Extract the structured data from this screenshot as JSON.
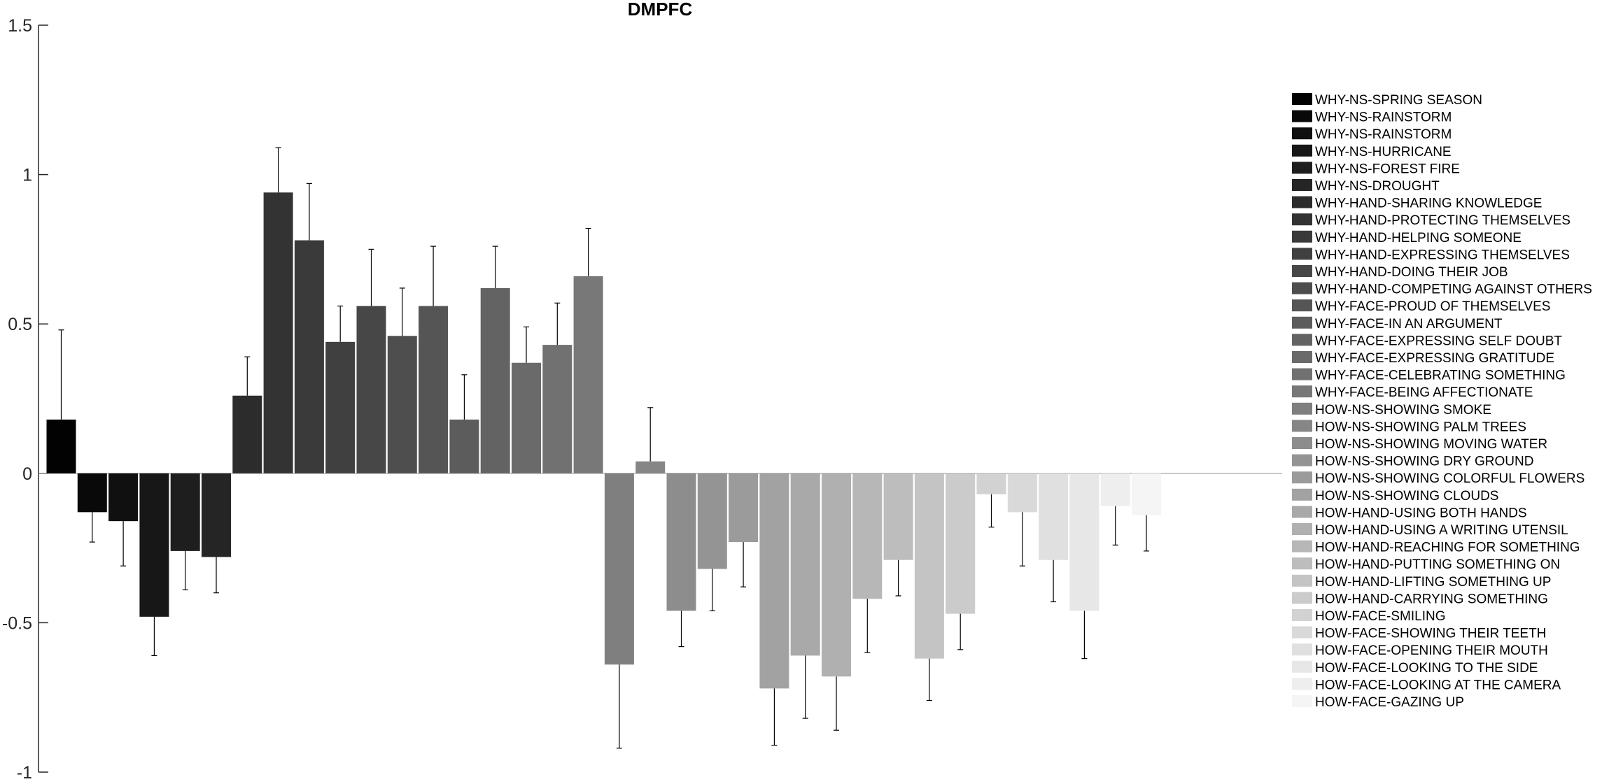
{
  "chart_data": {
    "type": "bar",
    "title": "DMPFC",
    "xlabel": "",
    "ylabel": "",
    "ylim": [
      -1,
      1.5
    ],
    "yticks": [
      1.5,
      1,
      0.5,
      0,
      -0.5,
      -1
    ],
    "ytick_labels": [
      "1.5",
      "1",
      "0.5",
      "0",
      "-0.5",
      "-1"
    ],
    "grid": false,
    "legend_position": "right",
    "has_error_bars": true,
    "colormap": "grayscale, black to near-white",
    "series": [
      {
        "name": "WHY-NS-SPRING SEASON",
        "value": 0.18,
        "error": 0.3
      },
      {
        "name": "WHY-NS-RAINSTORM",
        "value": -0.13,
        "error": 0.1
      },
      {
        "name": "WHY-NS-RAINSTORM",
        "value": -0.16,
        "error": 0.15
      },
      {
        "name": "WHY-NS-HURRICANE",
        "value": -0.48,
        "error": 0.13
      },
      {
        "name": "WHY-NS-FOREST FIRE",
        "value": -0.26,
        "error": 0.13
      },
      {
        "name": "WHY-NS-DROUGHT",
        "value": -0.28,
        "error": 0.12
      },
      {
        "name": "WHY-HAND-SHARING KNOWLEDGE",
        "value": 0.26,
        "error": 0.13
      },
      {
        "name": "WHY-HAND-PROTECTING THEMSELVES",
        "value": 0.94,
        "error": 0.15
      },
      {
        "name": "WHY-HAND-HELPING SOMEONE",
        "value": 0.78,
        "error": 0.19
      },
      {
        "name": "WHY-HAND-EXPRESSING THEMSELVES",
        "value": 0.44,
        "error": 0.12
      },
      {
        "name": "WHY-HAND-DOING THEIR JOB",
        "value": 0.56,
        "error": 0.19
      },
      {
        "name": "WHY-HAND-COMPETING AGAINST OTHERS",
        "value": 0.46,
        "error": 0.16
      },
      {
        "name": "WHY-FACE-PROUD OF THEMSELVES",
        "value": 0.56,
        "error": 0.2
      },
      {
        "name": "WHY-FACE-IN AN ARGUMENT",
        "value": 0.18,
        "error": 0.15
      },
      {
        "name": "WHY-FACE-EXPRESSING SELF DOUBT",
        "value": 0.62,
        "error": 0.14
      },
      {
        "name": "WHY-FACE-EXPRESSING GRATITUDE",
        "value": 0.37,
        "error": 0.12
      },
      {
        "name": "WHY-FACE-CELEBRATING SOMETHING",
        "value": 0.43,
        "error": 0.14
      },
      {
        "name": "WHY-FACE-BEING AFFECTIONATE",
        "value": 0.66,
        "error": 0.16
      },
      {
        "name": "HOW-NS-SHOWING SMOKE",
        "value": -0.64,
        "error": 0.28
      },
      {
        "name": "HOW-NS-SHOWING PALM TREES",
        "value": 0.04,
        "error": 0.18
      },
      {
        "name": "HOW-NS-SHOWING MOVING WATER",
        "value": -0.46,
        "error": 0.12
      },
      {
        "name": "HOW-NS-SHOWING DRY GROUND",
        "value": -0.32,
        "error": 0.14
      },
      {
        "name": "HOW-NS-SHOWING COLORFUL FLOWERS",
        "value": -0.23,
        "error": 0.15
      },
      {
        "name": "HOW-NS-SHOWING CLOUDS",
        "value": -0.72,
        "error": 0.19
      },
      {
        "name": "HOW-HAND-USING BOTH HANDS",
        "value": -0.61,
        "error": 0.21
      },
      {
        "name": "HOW-HAND-USING A WRITING UTENSIL",
        "value": -0.68,
        "error": 0.18
      },
      {
        "name": "HOW-HAND-REACHING FOR SOMETHING",
        "value": -0.42,
        "error": 0.18
      },
      {
        "name": "HOW-HAND-PUTTING SOMETHING ON",
        "value": -0.29,
        "error": 0.12
      },
      {
        "name": "HOW-HAND-LIFTING SOMETHING UP",
        "value": -0.62,
        "error": 0.14
      },
      {
        "name": "HOW-HAND-CARRYING SOMETHING",
        "value": -0.47,
        "error": 0.12
      },
      {
        "name": "HOW-FACE-SMILING",
        "value": -0.07,
        "error": 0.11
      },
      {
        "name": "HOW-FACE-SHOWING THEIR TEETH",
        "value": -0.13,
        "error": 0.18
      },
      {
        "name": "HOW-FACE-OPENING THEIR MOUTH",
        "value": -0.29,
        "error": 0.14
      },
      {
        "name": "HOW-FACE-LOOKING TO THE SIDE",
        "value": -0.46,
        "error": 0.16
      },
      {
        "name": "HOW-FACE-LOOKING AT THE CAMERA",
        "value": -0.11,
        "error": 0.13
      },
      {
        "name": "HOW-FACE-GAZING UP",
        "value": -0.14,
        "error": 0.12
      }
    ]
  }
}
